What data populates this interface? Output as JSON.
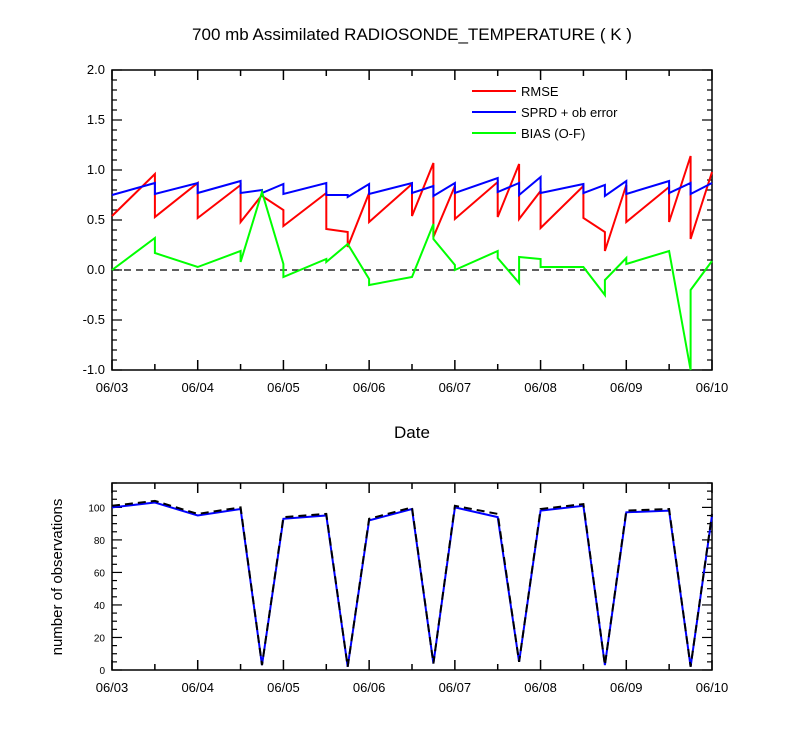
{
  "chart_data": [
    {
      "type": "line",
      "title": "700 mb Assimilated RADIOSONDE_TEMPERATURE ( K )",
      "xlabel": "Date",
      "ylabel": "",
      "x_tick_labels": [
        "06/03",
        "06/04",
        "06/05",
        "06/06",
        "06/07",
        "06/08",
        "06/09",
        "06/10"
      ],
      "xlim": [
        0,
        7
      ],
      "ylim": [
        -1.0,
        2.0
      ],
      "y_ticks": [
        -1.0,
        -0.5,
        0.0,
        0.5,
        1.0,
        1.5,
        2.0
      ],
      "y_tick_labels": [
        "-1.0",
        "-0.5",
        "0.0",
        "0.5",
        "1.0",
        "1.5",
        "2.0"
      ],
      "zero_line": true,
      "legend_position": "top-right",
      "series": [
        {
          "name": "RMSE",
          "color": "#ff0000",
          "points": [
            [
              0,
              0.54
            ],
            [
              0.5,
              0.96
            ],
            [
              0.5,
              0.53
            ],
            [
              1,
              0.87
            ],
            [
              1,
              0.52
            ],
            [
              1.5,
              0.85
            ],
            [
              1.5,
              0.48
            ],
            [
              1.75,
              0.75
            ],
            [
              1.75,
              0.74
            ],
            [
              2,
              0.6
            ],
            [
              2,
              0.44
            ],
            [
              2.5,
              0.77
            ],
            [
              2.5,
              0.41
            ],
            [
              2.75,
              0.38
            ],
            [
              2.75,
              0.23
            ],
            [
              3,
              0.77
            ],
            [
              3,
              0.48
            ],
            [
              3.5,
              0.86
            ],
            [
              3.5,
              0.54
            ],
            [
              3.75,
              1.07
            ],
            [
              3.75,
              0.33
            ],
            [
              4,
              0.84
            ],
            [
              4,
              0.51
            ],
            [
              4.5,
              0.88
            ],
            [
              4.5,
              0.53
            ],
            [
              4.75,
              1.06
            ],
            [
              4.75,
              0.51
            ],
            [
              5,
              0.79
            ],
            [
              5,
              0.42
            ],
            [
              5.5,
              0.84
            ],
            [
              5.5,
              0.52
            ],
            [
              5.75,
              0.38
            ],
            [
              5.75,
              0.19
            ],
            [
              6,
              0.85
            ],
            [
              6,
              0.48
            ],
            [
              6.5,
              0.83
            ],
            [
              6.5,
              0.48
            ],
            [
              6.75,
              1.14
            ],
            [
              6.75,
              0.31
            ],
            [
              7,
              0.98
            ]
          ]
        },
        {
          "name": "SPRD + ob error",
          "color": "#0000ff",
          "points": [
            [
              0,
              0.75
            ],
            [
              0.5,
              0.87
            ],
            [
              0.5,
              0.76
            ],
            [
              1,
              0.87
            ],
            [
              1,
              0.77
            ],
            [
              1.5,
              0.89
            ],
            [
              1.5,
              0.77
            ],
            [
              1.75,
              0.8
            ],
            [
              1.75,
              0.77
            ],
            [
              2,
              0.86
            ],
            [
              2,
              0.76
            ],
            [
              2.5,
              0.87
            ],
            [
              2.5,
              0.75
            ],
            [
              2.75,
              0.75
            ],
            [
              2.75,
              0.73
            ],
            [
              3,
              0.86
            ],
            [
              3,
              0.76
            ],
            [
              3.5,
              0.87
            ],
            [
              3.5,
              0.77
            ],
            [
              3.75,
              0.84
            ],
            [
              3.75,
              0.74
            ],
            [
              4,
              0.87
            ],
            [
              4,
              0.77
            ],
            [
              4.5,
              0.92
            ],
            [
              4.5,
              0.78
            ],
            [
              4.75,
              0.87
            ],
            [
              4.75,
              0.75
            ],
            [
              5,
              0.93
            ],
            [
              5,
              0.77
            ],
            [
              5.5,
              0.86
            ],
            [
              5.5,
              0.77
            ],
            [
              5.75,
              0.85
            ],
            [
              5.75,
              0.74
            ],
            [
              6,
              0.89
            ],
            [
              6,
              0.76
            ],
            [
              6.5,
              0.89
            ],
            [
              6.5,
              0.77
            ],
            [
              6.75,
              0.87
            ],
            [
              6.75,
              0.76
            ],
            [
              7,
              0.87
            ]
          ]
        },
        {
          "name": "BIAS (O-F)",
          "color": "#00ff00",
          "points": [
            [
              0,
              0.0
            ],
            [
              0.5,
              0.32
            ],
            [
              0.5,
              0.17
            ],
            [
              1,
              0.03
            ],
            [
              1.5,
              0.19
            ],
            [
              1.5,
              0.08
            ],
            [
              1.75,
              0.78
            ],
            [
              2,
              0.06
            ],
            [
              2,
              -0.07
            ],
            [
              2.5,
              0.11
            ],
            [
              2.5,
              0.08
            ],
            [
              2.75,
              0.26
            ],
            [
              3,
              -0.09
            ],
            [
              3,
              -0.15
            ],
            [
              3.5,
              -0.07
            ],
            [
              3.75,
              0.46
            ],
            [
              3.75,
              0.31
            ],
            [
              4,
              0.05
            ],
            [
              4,
              0.0
            ],
            [
              4.5,
              0.19
            ],
            [
              4.5,
              0.12
            ],
            [
              4.75,
              -0.13
            ],
            [
              4.75,
              0.13
            ],
            [
              5,
              0.11
            ],
            [
              5,
              0.03
            ],
            [
              5.5,
              0.03
            ],
            [
              5.75,
              -0.25
            ],
            [
              5.75,
              -0.1
            ],
            [
              6,
              0.12
            ],
            [
              6,
              0.06
            ],
            [
              6.5,
              0.19
            ],
            [
              6.75,
              -1.0
            ],
            [
              6.75,
              -0.2
            ],
            [
              7,
              0.09
            ]
          ]
        }
      ]
    },
    {
      "type": "line",
      "title": "",
      "xlabel": "",
      "ylabel": "number of observations",
      "x_tick_labels": [
        "06/03",
        "06/04",
        "06/05",
        "06/06",
        "06/07",
        "06/08",
        "06/09",
        "06/10"
      ],
      "xlim": [
        0,
        7
      ],
      "ylim": [
        0,
        115
      ],
      "y_ticks": [
        0,
        20,
        40,
        60,
        80,
        100
      ],
      "y_tick_labels": [
        "0",
        "20",
        "40",
        "60",
        "80",
        "100"
      ],
      "series": [
        {
          "style": "solid",
          "color": "#0000ff",
          "points": [
            [
              0,
              100
            ],
            [
              0.5,
              103
            ],
            [
              1,
              95
            ],
            [
              1.5,
              99
            ],
            [
              1.75,
              3
            ],
            [
              2,
              93
            ],
            [
              2.5,
              95
            ],
            [
              2.75,
              2
            ],
            [
              3,
              92
            ],
            [
              3.5,
              99
            ],
            [
              3.75,
              4
            ],
            [
              4,
              100
            ],
            [
              4.5,
              94
            ],
            [
              4.75,
              5
            ],
            [
              5,
              98
            ],
            [
              5.5,
              101
            ],
            [
              5.75,
              3
            ],
            [
              6,
              97
            ],
            [
              6.5,
              98
            ],
            [
              6.75,
              2
            ],
            [
              7,
              95
            ]
          ]
        },
        {
          "style": "dashed",
          "color": "#000000",
          "points": [
            [
              0,
              101
            ],
            [
              0.5,
              104
            ],
            [
              1,
              96
            ],
            [
              1.5,
              100
            ],
            [
              1.75,
              3
            ],
            [
              2,
              94
            ],
            [
              2.5,
              96
            ],
            [
              2.75,
              2
            ],
            [
              3,
              93
            ],
            [
              3.5,
              100
            ],
            [
              3.75,
              4
            ],
            [
              4,
              101
            ],
            [
              4.5,
              96
            ],
            [
              4.75,
              5
            ],
            [
              5,
              99
            ],
            [
              5.5,
              102
            ],
            [
              5.75,
              3
            ],
            [
              6,
              98
            ],
            [
              6.5,
              99
            ],
            [
              6.75,
              2
            ],
            [
              7,
              96
            ]
          ]
        }
      ]
    }
  ]
}
